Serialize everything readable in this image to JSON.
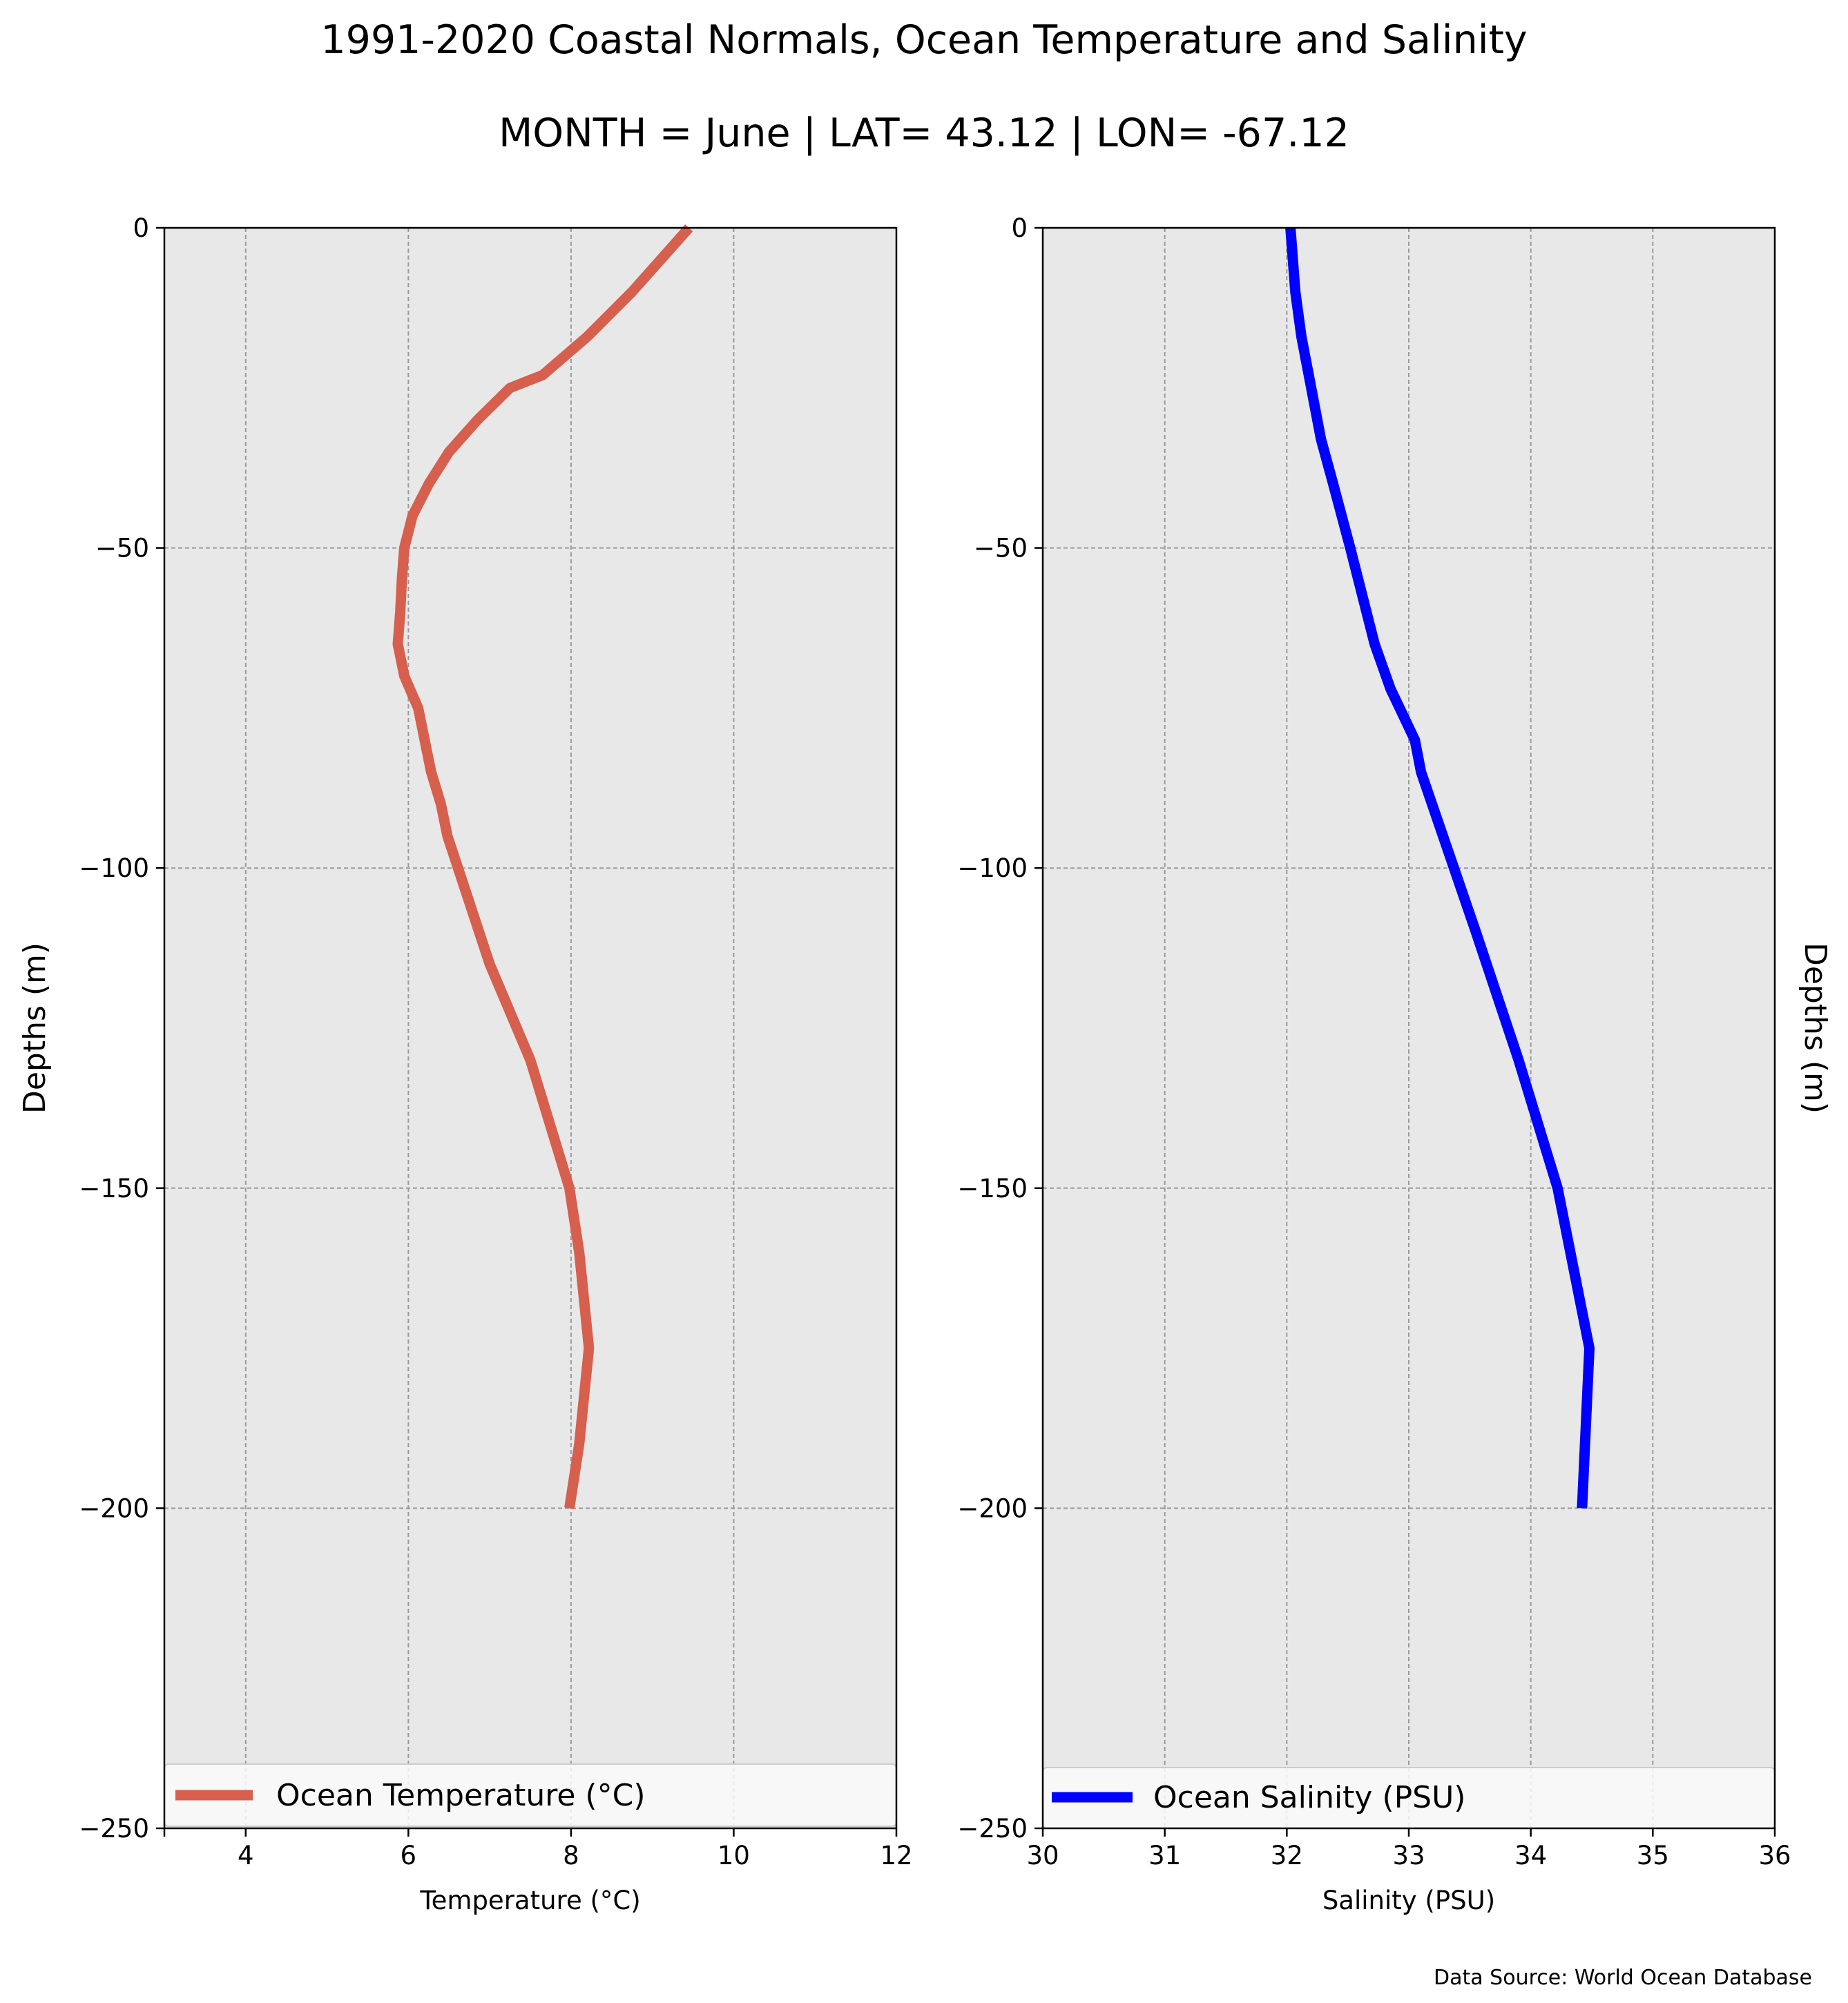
{
  "figure": {
    "title": "1991-2020 Coastal Normals, Ocean Temperature and Salinity",
    "subtitle": "MONTH = June | LAT= 43.12 | LON= -67.12",
    "source": "Data Source: World Ocean Database"
  },
  "chart_data": [
    {
      "type": "line",
      "xlabel": "Temperature (°C)",
      "ylabel": "Depths (m)",
      "xlim": [
        3,
        12
      ],
      "ylim": [
        -250,
        0
      ],
      "xticks": [
        4,
        6,
        8,
        10,
        12
      ],
      "yticks": [
        0,
        -50,
        -100,
        -150,
        -200,
        -250
      ],
      "xtick_labels": [
        "4",
        "6",
        "8",
        "10",
        "12"
      ],
      "ytick_labels": [
        "0",
        "−50",
        "−100",
        "−150",
        "−200",
        "−250"
      ],
      "grid": true,
      "legend_position": "lower center",
      "series": [
        {
          "name": "Ocean Temperature (°C)",
          "color": "#d65f4e",
          "x": [
            9.45,
            8.75,
            8.2,
            7.65,
            7.25,
            6.85,
            6.5,
            6.25,
            6.05,
            5.95,
            5.92,
            5.9,
            5.87,
            5.95,
            6.12,
            6.28,
            6.4,
            6.48,
            7.0,
            7.5,
            7.98,
            8.1,
            8.22,
            8.1,
            7.98
          ],
          "y": [
            0,
            -10,
            -17,
            -23,
            -25,
            -30,
            -35,
            -40,
            -45,
            -50,
            -55,
            -60,
            -65,
            -70,
            -75,
            -85,
            -90,
            -95,
            -115,
            -130,
            -150,
            -160,
            -175,
            -190,
            -200
          ]
        }
      ]
    },
    {
      "type": "line",
      "xlabel": "Salinity (PSU)",
      "ylabel": "Depths (m)",
      "xlim": [
        30,
        36
      ],
      "ylim": [
        -250,
        0
      ],
      "xticks": [
        30,
        31,
        32,
        33,
        34,
        35,
        36
      ],
      "yticks": [
        0,
        -50,
        -100,
        -150,
        -200,
        -250
      ],
      "xtick_labels": [
        "30",
        "31",
        "32",
        "33",
        "34",
        "35",
        "36"
      ],
      "ytick_labels": [
        "0",
        "−50",
        "−100",
        "−150",
        "−200",
        "−250"
      ],
      "grid": true,
      "legend_position": "lower center",
      "series": [
        {
          "name": "Ocean Salinity (PSU)",
          "color": "#0000ff",
          "x": [
            32.03,
            32.07,
            32.12,
            32.2,
            32.28,
            32.38,
            32.52,
            32.72,
            32.85,
            33.05,
            33.1,
            33.28,
            33.55,
            33.9,
            34.22,
            34.48,
            34.42
          ],
          "y": [
            0,
            -10,
            -17,
            -25,
            -33,
            -40,
            -50,
            -65,
            -72,
            -80,
            -85,
            -95,
            -110,
            -130,
            -150,
            -175,
            -200
          ]
        }
      ]
    }
  ]
}
